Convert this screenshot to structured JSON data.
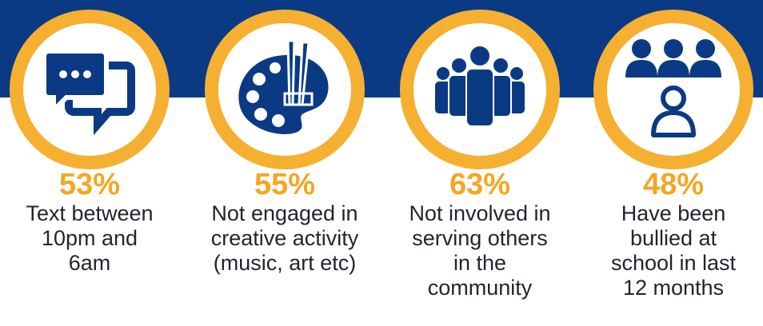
{
  "colors": {
    "band": "#0b3a84",
    "ring": "#f5b032",
    "percent": "#f5a623",
    "icon": "#0b3a84"
  },
  "stats": [
    {
      "percent": "53%",
      "icon": "chat-bubbles-icon",
      "lines": [
        "Text between",
        "10pm and",
        "6am"
      ]
    },
    {
      "percent": "55%",
      "icon": "paint-palette-icon",
      "lines": [
        "Not engaged in",
        "creative activity",
        "(music, art etc)"
      ]
    },
    {
      "percent": "63%",
      "icon": "crowd-icon",
      "lines": [
        "Not involved in",
        "serving others",
        "in the",
        "community"
      ]
    },
    {
      "percent": "48%",
      "icon": "bullied-person-icon",
      "lines": [
        "Have been",
        "bullied at",
        "school in last",
        "12 months"
      ]
    }
  ]
}
